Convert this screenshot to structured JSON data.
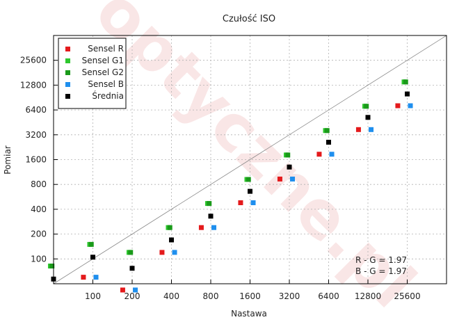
{
  "chart_data": {
    "type": "scatter",
    "title": "Czułość ISO",
    "xlabel": "Nastawa",
    "ylabel": "Pomiar",
    "x_scale": "log2",
    "y_scale": "log2",
    "xlim": [
      50,
      51200
    ],
    "ylim": [
      50,
      51200
    ],
    "x_ticks": [
      100,
      200,
      400,
      800,
      1600,
      3200,
      6400,
      12800,
      25600
    ],
    "x_tick_labels": [
      "100",
      "200",
      "400",
      "800",
      "1600",
      "3200",
      "6400",
      "12800",
      "25600"
    ],
    "y_ticks": [
      100,
      200,
      400,
      800,
      1600,
      3200,
      6400,
      12800,
      25600
    ],
    "y_tick_labels": [
      "100",
      "200",
      "400",
      "800",
      "1600",
      "3200",
      "6400",
      "12800",
      "25600"
    ],
    "grid": true,
    "legend_position": "top-left",
    "diagonal_reference": true,
    "x_levels": [
      50,
      100,
      200,
      400,
      800,
      1600,
      3200,
      6400,
      12800,
      25600
    ],
    "series": [
      {
        "name": "Sensel R",
        "color": "#e41a1c",
        "x_offset": -0.24,
        "values": [
          null,
          60,
          42,
          120,
          240,
          480,
          930,
          1860,
          3700,
          7200
        ]
      },
      {
        "name": "Sensel G1",
        "color": "#2ec72e",
        "x_offset": -0.08,
        "values": [
          82,
          150,
          120,
          240,
          470,
          920,
          1820,
          3600,
          7100,
          14000
        ]
      },
      {
        "name": "Sensel G2",
        "color": "#1a9a1a",
        "x_offset": -0.04,
        "values": [
          82,
          150,
          120,
          240,
          470,
          920,
          1820,
          3600,
          7100,
          14000
        ]
      },
      {
        "name": "Sensel B",
        "color": "#1f8fee",
        "x_offset": 0.08,
        "values": [
          null,
          60,
          42,
          120,
          240,
          480,
          930,
          1860,
          3700,
          7200
        ]
      },
      {
        "name": "Średnia",
        "color": "#000000",
        "x_offset": 0.0,
        "values": [
          57,
          105,
          77,
          170,
          330,
          660,
          1300,
          2600,
          5200,
          10000
        ]
      }
    ],
    "annotations": [
      "R - G = 1.97",
      "B - G = 1.97"
    ],
    "watermark": "optyczne.pl"
  }
}
